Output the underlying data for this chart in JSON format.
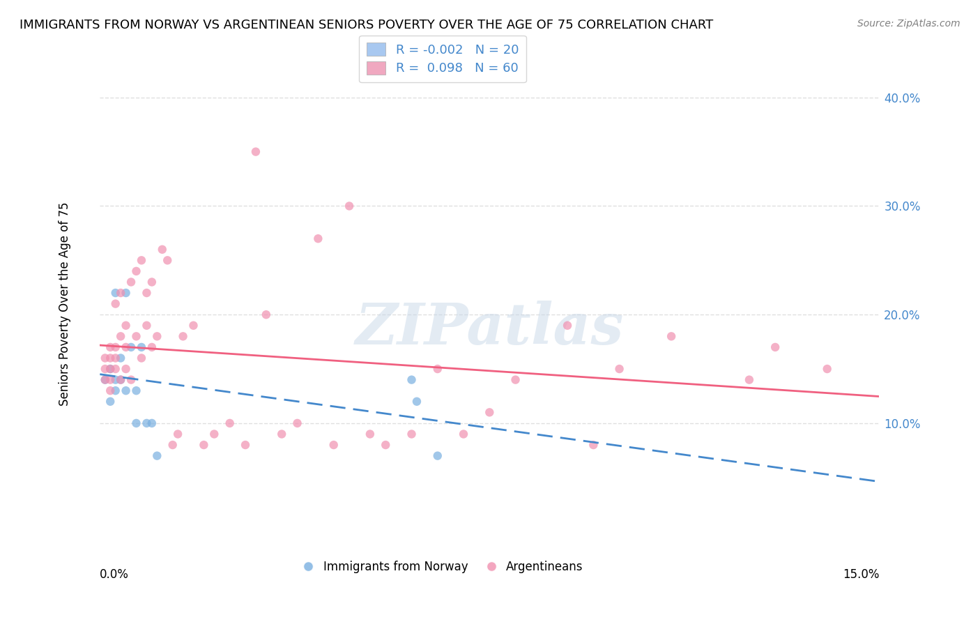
{
  "title": "IMMIGRANTS FROM NORWAY VS ARGENTINEAN SENIORS POVERTY OVER THE AGE OF 75 CORRELATION CHART",
  "source": "Source: ZipAtlas.com",
  "ylabel": "Seniors Poverty Over the Age of 75",
  "xlabel_bottom_left": "0.0%",
  "xlabel_bottom_right": "15.0%",
  "legend": [
    {
      "label": "R = -0.002  N = 20",
      "color": "#a8c8f0",
      "R": -0.002,
      "N": 20
    },
    {
      "label": "R =  0.098  N = 60",
      "color": "#f0a8c0",
      "R": 0.098,
      "N": 60
    }
  ],
  "right_yticks": [
    0.1,
    0.2,
    0.3,
    0.4
  ],
  "right_ytick_labels": [
    "10.0%",
    "20.0%",
    "30.0%",
    "40.0%"
  ],
  "xlim": [
    0.0,
    0.15
  ],
  "ylim": [
    -0.02,
    0.44
  ],
  "watermark": "ZIPatlas",
  "watermark_color": "#c8d8e8",
  "background_color": "#ffffff",
  "grid_color": "#e0e0e0",
  "blue_scatter_color": "#7ab0e0",
  "pink_scatter_color": "#f090b0",
  "blue_line_color": "#4488cc",
  "pink_line_color": "#f06080",
  "norway_x": [
    0.001,
    0.002,
    0.002,
    0.003,
    0.003,
    0.003,
    0.004,
    0.004,
    0.005,
    0.005,
    0.006,
    0.007,
    0.007,
    0.008,
    0.009,
    0.01,
    0.011,
    0.06,
    0.061,
    0.065
  ],
  "norway_y": [
    0.14,
    0.12,
    0.15,
    0.13,
    0.14,
    0.22,
    0.16,
    0.14,
    0.22,
    0.13,
    0.17,
    0.13,
    0.1,
    0.17,
    0.1,
    0.1,
    0.07,
    0.14,
    0.12,
    0.07
  ],
  "argentina_x": [
    0.001,
    0.001,
    0.001,
    0.002,
    0.002,
    0.002,
    0.002,
    0.002,
    0.003,
    0.003,
    0.003,
    0.003,
    0.004,
    0.004,
    0.004,
    0.005,
    0.005,
    0.005,
    0.006,
    0.006,
    0.007,
    0.007,
    0.008,
    0.008,
    0.009,
    0.009,
    0.01,
    0.01,
    0.011,
    0.012,
    0.013,
    0.014,
    0.015,
    0.016,
    0.018,
    0.02,
    0.022,
    0.025,
    0.028,
    0.03,
    0.032,
    0.035,
    0.038,
    0.042,
    0.045,
    0.048,
    0.052,
    0.055,
    0.06,
    0.065,
    0.07,
    0.075,
    0.08,
    0.09,
    0.095,
    0.1,
    0.11,
    0.125,
    0.13,
    0.14
  ],
  "argentina_y": [
    0.14,
    0.15,
    0.16,
    0.13,
    0.14,
    0.15,
    0.16,
    0.17,
    0.15,
    0.16,
    0.17,
    0.21,
    0.14,
    0.18,
    0.22,
    0.15,
    0.17,
    0.19,
    0.14,
    0.23,
    0.18,
    0.24,
    0.16,
    0.25,
    0.22,
    0.19,
    0.23,
    0.17,
    0.18,
    0.26,
    0.25,
    0.08,
    0.09,
    0.18,
    0.19,
    0.08,
    0.09,
    0.1,
    0.08,
    0.35,
    0.2,
    0.09,
    0.1,
    0.27,
    0.08,
    0.3,
    0.09,
    0.08,
    0.09,
    0.15,
    0.09,
    0.11,
    0.14,
    0.19,
    0.08,
    0.15,
    0.18,
    0.14,
    0.17,
    0.15
  ]
}
